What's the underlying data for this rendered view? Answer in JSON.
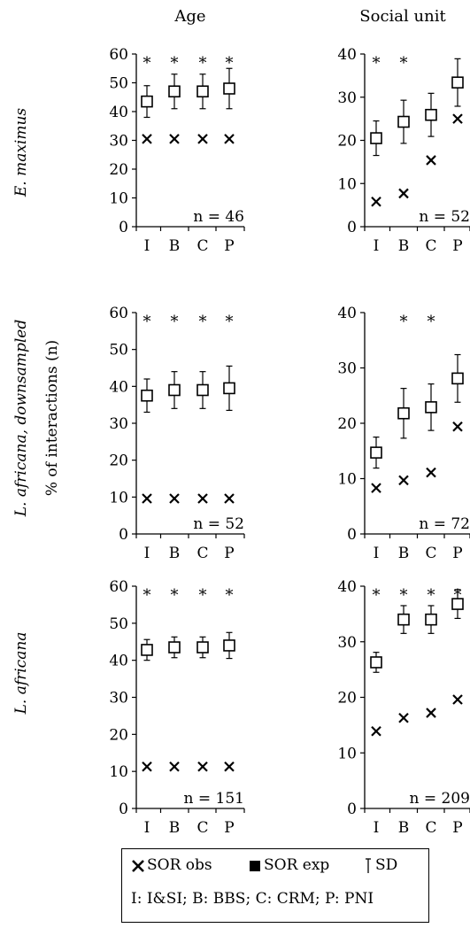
{
  "figure": {
    "column_titles": [
      "Age",
      "Social unit"
    ],
    "y_axis_label": "% of interactions (n)",
    "row_labels": [
      "E. maximus",
      "L. africana, downsampled",
      "L. africana"
    ]
  },
  "legend": {
    "obs_label": "SOR obs",
    "exp_label": "SOR exp",
    "sd_label": "SD",
    "key": "I: I&SI; B: BBS; C: CRM; P: PNI"
  },
  "chart_data": [
    {
      "type": "scatter",
      "row": 0,
      "col": 0,
      "categories": [
        "I",
        "B",
        "C",
        "P"
      ],
      "ylim": [
        0,
        60
      ],
      "yticks": [
        0,
        10,
        20,
        30,
        40,
        50,
        60
      ],
      "series": [
        {
          "name": "SOR obs",
          "marker": "x",
          "values": [
            30.5,
            30.5,
            30.5,
            30.5
          ]
        },
        {
          "name": "SOR exp",
          "marker": "square",
          "values": [
            43.5,
            47,
            47,
            48
          ],
          "sd": [
            5.5,
            6,
            6,
            7
          ]
        }
      ],
      "significance": [
        "*",
        "*",
        "*",
        "*"
      ],
      "n_label": "n = 46"
    },
    {
      "type": "scatter",
      "row": 0,
      "col": 1,
      "categories": [
        "I",
        "B",
        "C",
        "P"
      ],
      "ylim": [
        0,
        40
      ],
      "yticks": [
        0,
        10,
        20,
        30,
        40
      ],
      "series": [
        {
          "name": "SOR obs",
          "marker": "x",
          "values": [
            5.8,
            7.7,
            15.4,
            25
          ]
        },
        {
          "name": "SOR exp",
          "marker": "square",
          "values": [
            20.5,
            24.3,
            25.9,
            33.4
          ],
          "sd": [
            4,
            5,
            5,
            5.5
          ]
        }
      ],
      "significance": [
        "*",
        "*",
        "",
        ""
      ],
      "n_label": "n = 52"
    },
    {
      "type": "scatter",
      "row": 1,
      "col": 0,
      "categories": [
        "I",
        "B",
        "C",
        "P"
      ],
      "ylim": [
        0,
        60
      ],
      "yticks": [
        0,
        10,
        20,
        30,
        40,
        50,
        60
      ],
      "series": [
        {
          "name": "SOR obs",
          "marker": "x",
          "values": [
            9.6,
            9.6,
            9.6,
            9.6
          ]
        },
        {
          "name": "SOR exp",
          "marker": "square",
          "values": [
            37.5,
            39,
            39,
            39.5
          ],
          "sd": [
            4.5,
            5,
            5,
            6
          ]
        }
      ],
      "significance": [
        "*",
        "*",
        "*",
        "*"
      ],
      "n_label": "n = 52"
    },
    {
      "type": "scatter",
      "row": 1,
      "col": 1,
      "categories": [
        "I",
        "B",
        "C",
        "P"
      ],
      "ylim": [
        0,
        40
      ],
      "yticks": [
        0,
        10,
        20,
        30,
        40
      ],
      "series": [
        {
          "name": "SOR obs",
          "marker": "x",
          "values": [
            8.3,
            9.7,
            11.1,
            19.4
          ]
        },
        {
          "name": "SOR exp",
          "marker": "square",
          "values": [
            14.7,
            21.8,
            22.9,
            28.1
          ],
          "sd": [
            2.8,
            4.5,
            4.2,
            4.3
          ]
        }
      ],
      "significance": [
        "",
        "*",
        "*",
        ""
      ],
      "n_label": "n = 72"
    },
    {
      "type": "scatter",
      "row": 2,
      "col": 0,
      "categories": [
        "I",
        "B",
        "C",
        "P"
      ],
      "ylim": [
        0,
        60
      ],
      "yticks": [
        0,
        10,
        20,
        30,
        40,
        50,
        60
      ],
      "series": [
        {
          "name": "SOR obs",
          "marker": "x",
          "values": [
            11.3,
            11.3,
            11.3,
            11.3
          ]
        },
        {
          "name": "SOR exp",
          "marker": "square",
          "values": [
            42.8,
            43.5,
            43.5,
            44
          ],
          "sd": [
            2.8,
            2.8,
            2.8,
            3.5
          ]
        }
      ],
      "significance": [
        "*",
        "*",
        "*",
        "*"
      ],
      "n_label": "n = 151"
    },
    {
      "type": "scatter",
      "row": 2,
      "col": 1,
      "categories": [
        "I",
        "B",
        "C",
        "P"
      ],
      "ylim": [
        0,
        40
      ],
      "yticks": [
        0,
        10,
        20,
        30,
        40
      ],
      "series": [
        {
          "name": "SOR obs",
          "marker": "x",
          "values": [
            13.9,
            16.3,
            17.2,
            19.6
          ]
        },
        {
          "name": "SOR exp",
          "marker": "square",
          "values": [
            26.3,
            34,
            34,
            36.8
          ],
          "sd": [
            1.8,
            2.5,
            2.5,
            2.6
          ]
        }
      ],
      "significance": [
        "*",
        "*",
        "*",
        "*"
      ],
      "n_label": "n = 209"
    }
  ]
}
